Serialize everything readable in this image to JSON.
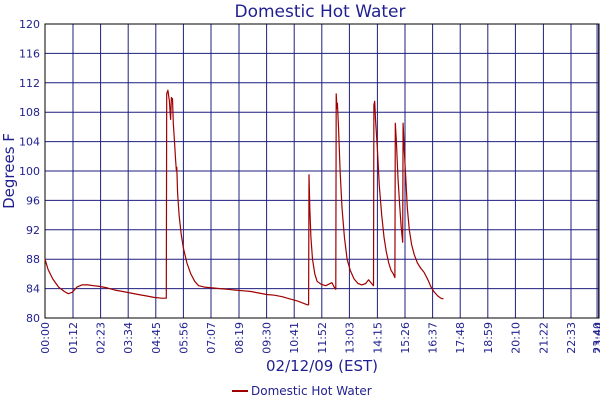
{
  "chart_data": {
    "type": "line",
    "title": "Domestic Hot Water",
    "xlabel": "02/12/09 (EST)",
    "ylabel": "Degrees F",
    "ylim": [
      80,
      120
    ],
    "yticks": [
      80,
      84,
      88,
      92,
      96,
      100,
      104,
      108,
      112,
      116,
      120
    ],
    "xlim_minutes": [
      0,
      1425
    ],
    "xticks": [
      {
        "t": 0,
        "label": "00:00"
      },
      {
        "t": 72,
        "label": "01:12"
      },
      {
        "t": 143,
        "label": "02:23"
      },
      {
        "t": 214,
        "label": "03:34"
      },
      {
        "t": 285,
        "label": "04:45"
      },
      {
        "t": 356,
        "label": "05:56"
      },
      {
        "t": 427,
        "label": "07:07"
      },
      {
        "t": 499,
        "label": "08:19"
      },
      {
        "t": 570,
        "label": "09:30"
      },
      {
        "t": 641,
        "label": "10:41"
      },
      {
        "t": 712,
        "label": "11:52"
      },
      {
        "t": 783,
        "label": "13:03"
      },
      {
        "t": 855,
        "label": "14:15"
      },
      {
        "t": 926,
        "label": "15:26"
      },
      {
        "t": 997,
        "label": "16:37"
      },
      {
        "t": 1068,
        "label": "17:48"
      },
      {
        "t": 1139,
        "label": "18:59"
      },
      {
        "t": 1210,
        "label": "20:10"
      },
      {
        "t": 1282,
        "label": "21:22"
      },
      {
        "t": 1353,
        "label": "22:33"
      },
      {
        "t": 1420,
        "label": "23:40"
      },
      {
        "t": 1424,
        "label": "23:44"
      }
    ],
    "grid": true,
    "legend_position": "bottom",
    "series": [
      {
        "name": "Domestic Hot Water",
        "color": "#a00000",
        "points": [
          [
            0,
            88
          ],
          [
            8,
            86.6
          ],
          [
            20,
            85.3
          ],
          [
            35,
            84.2
          ],
          [
            50,
            83.6
          ],
          [
            60,
            83.3
          ],
          [
            70,
            83.5
          ],
          [
            82,
            84.2
          ],
          [
            95,
            84.5
          ],
          [
            110,
            84.5
          ],
          [
            125,
            84.4
          ],
          [
            140,
            84.3
          ],
          [
            160,
            84.1
          ],
          [
            180,
            83.8
          ],
          [
            200,
            83.6
          ],
          [
            220,
            83.4
          ],
          [
            240,
            83.2
          ],
          [
            260,
            83.0
          ],
          [
            280,
            82.8
          ],
          [
            300,
            82.7
          ],
          [
            312,
            82.7
          ],
          [
            313,
            110.5
          ],
          [
            316,
            111.0
          ],
          [
            320,
            109.5
          ],
          [
            323,
            107.0
          ],
          [
            325,
            110.0
          ],
          [
            328,
            109.8
          ],
          [
            330,
            106.5
          ],
          [
            333,
            104.0
          ],
          [
            336,
            101.5
          ],
          [
            338,
            100.0
          ],
          [
            339,
            100.5
          ],
          [
            341,
            97.0
          ],
          [
            345,
            94.0
          ],
          [
            350,
            91.5
          ],
          [
            356,
            89.5
          ],
          [
            365,
            87.5
          ],
          [
            375,
            86.0
          ],
          [
            385,
            85.0
          ],
          [
            395,
            84.4
          ],
          [
            410,
            84.2
          ],
          [
            430,
            84.1
          ],
          [
            450,
            84.0
          ],
          [
            470,
            83.9
          ],
          [
            490,
            83.8
          ],
          [
            510,
            83.7
          ],
          [
            530,
            83.6
          ],
          [
            550,
            83.4
          ],
          [
            570,
            83.2
          ],
          [
            590,
            83.1
          ],
          [
            610,
            82.9
          ],
          [
            630,
            82.6
          ],
          [
            650,
            82.3
          ],
          [
            665,
            82.0
          ],
          [
            675,
            81.8
          ],
          [
            678,
            81.8
          ],
          [
            679,
            99.5
          ],
          [
            681,
            95.0
          ],
          [
            684,
            91.0
          ],
          [
            688,
            88.0
          ],
          [
            694,
            86.0
          ],
          [
            700,
            85.0
          ],
          [
            710,
            84.6
          ],
          [
            722,
            84.4
          ],
          [
            730,
            84.6
          ],
          [
            738,
            84.8
          ],
          [
            744,
            84.2
          ],
          [
            748,
            83.9
          ],
          [
            749,
            110.5
          ],
          [
            751,
            108.5
          ],
          [
            752,
            109.2
          ],
          [
            755,
            106.0
          ],
          [
            759,
            100.0
          ],
          [
            764,
            95.0
          ],
          [
            770,
            91.0
          ],
          [
            777,
            88.0
          ],
          [
            785,
            86.5
          ],
          [
            795,
            85.3
          ],
          [
            805,
            84.7
          ],
          [
            815,
            84.5
          ],
          [
            825,
            84.7
          ],
          [
            832,
            85.2
          ],
          [
            840,
            84.7
          ],
          [
            845,
            84.4
          ],
          [
            846,
            109.0
          ],
          [
            848,
            109.5
          ],
          [
            850,
            107.0
          ],
          [
            855,
            103.0
          ],
          [
            860,
            98.0
          ],
          [
            866,
            94.0
          ],
          [
            872,
            91.0
          ],
          [
            878,
            89.0
          ],
          [
            884,
            87.5
          ],
          [
            890,
            86.5
          ],
          [
            896,
            86.0
          ],
          [
            900,
            85.5
          ],
          [
            901,
            106.5
          ],
          [
            904,
            104.0
          ],
          [
            908,
            99.0
          ],
          [
            912,
            95.5
          ],
          [
            916,
            92.5
          ],
          [
            920,
            90.3
          ],
          [
            921,
            106.5
          ],
          [
            924,
            103.0
          ],
          [
            928,
            99.0
          ],
          [
            932,
            95.0
          ],
          [
            937,
            92.0
          ],
          [
            943,
            90.0
          ],
          [
            950,
            88.6
          ],
          [
            958,
            87.5
          ],
          [
            966,
            86.8
          ],
          [
            975,
            86.2
          ],
          [
            985,
            85.2
          ],
          [
            993,
            84.2
          ],
          [
            1000,
            83.6
          ],
          [
            1010,
            83.0
          ],
          [
            1018,
            82.7
          ],
          [
            1025,
            82.6
          ]
        ]
      }
    ]
  }
}
